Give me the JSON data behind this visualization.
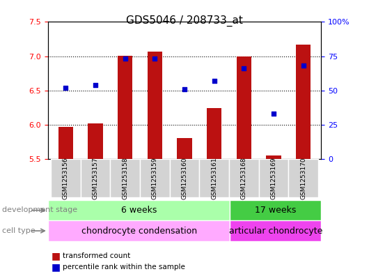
{
  "title": "GDS5046 / 208733_at",
  "samples": [
    "GSM1253156",
    "GSM1253157",
    "GSM1253158",
    "GSM1253159",
    "GSM1253160",
    "GSM1253161",
    "GSM1253168",
    "GSM1253169",
    "GSM1253170"
  ],
  "bar_values": [
    5.97,
    6.02,
    7.01,
    7.07,
    5.8,
    6.24,
    7.0,
    5.55,
    7.17
  ],
  "bar_base": 5.5,
  "percentile_values": [
    52,
    54,
    73,
    73,
    51,
    57,
    66,
    33,
    68
  ],
  "ylim": [
    5.5,
    7.5
  ],
  "y_left_ticks": [
    5.5,
    6.0,
    6.5,
    7.0,
    7.5
  ],
  "y_right_ticks": [
    0,
    25,
    50,
    75,
    100
  ],
  "y_right_labels": [
    "0",
    "25",
    "50",
    "75",
    "100%"
  ],
  "grid_lines": [
    6.0,
    6.5,
    7.0
  ],
  "bar_color": "#bb1111",
  "dot_color": "#0000cc",
  "bg_color": "#f0f0f0",
  "plot_bg": "#ffffff",
  "dev_stage_groups": [
    {
      "label": "6 weeks",
      "start": 0,
      "end": 6,
      "color": "#aaffaa"
    },
    {
      "label": "17 weeks",
      "start": 6,
      "end": 9,
      "color": "#44cc44"
    }
  ],
  "cell_type_groups": [
    {
      "label": "chondrocyte condensation",
      "start": 0,
      "end": 6,
      "color": "#ffaaff"
    },
    {
      "label": "articular chondrocyte",
      "start": 6,
      "end": 9,
      "color": "#ee44ee"
    }
  ],
  "dev_stage_label": "development stage",
  "cell_type_label": "cell type",
  "legend_bar_label": "transformed count",
  "legend_dot_label": "percentile rank within the sample",
  "title_fontsize": 11,
  "tick_fontsize": 8,
  "label_fontsize": 9
}
